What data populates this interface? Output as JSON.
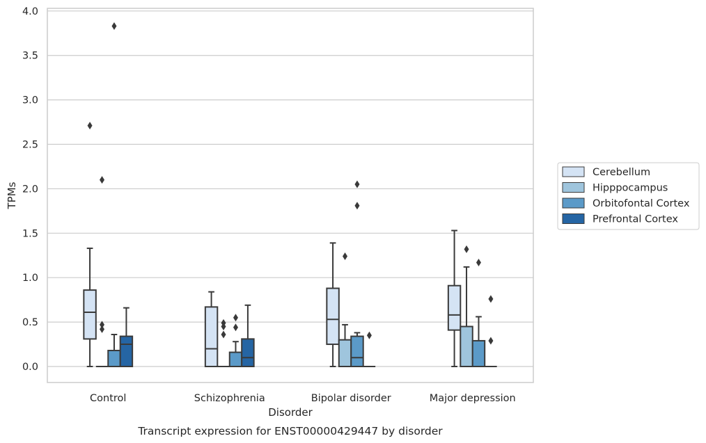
{
  "chart_data": {
    "type": "box",
    "title": "",
    "caption": "Transcript expression for ENST00000429447 by disorder",
    "xlabel": "Disorder",
    "ylabel": "TPMs",
    "ylim": [
      -0.18,
      4.03
    ],
    "yticks": [
      0.0,
      0.5,
      1.0,
      1.5,
      2.0,
      2.5,
      3.0,
      3.5,
      4.0
    ],
    "ytick_labels": [
      "0.0",
      "0.5",
      "1.0",
      "1.5",
      "2.0",
      "2.5",
      "3.0",
      "3.5",
      "4.0"
    ],
    "grid": "y",
    "legend_position": "right",
    "categories": [
      "Control",
      "Schizophrenia",
      "Bipolar disorder",
      "Major depression"
    ],
    "series": [
      {
        "name": "Cerebellum",
        "color": "#d4e3f4",
        "boxes": [
          {
            "whislo": 0.0,
            "q1": 0.31,
            "med": 0.61,
            "q3": 0.86,
            "whishi": 1.33,
            "fliers": [
              2.71
            ]
          },
          {
            "whislo": 0.0,
            "q1": 0.0,
            "med": 0.2,
            "q3": 0.67,
            "whishi": 0.84,
            "fliers": []
          },
          {
            "whislo": 0.0,
            "q1": 0.25,
            "med": 0.53,
            "q3": 0.88,
            "whishi": 1.39,
            "fliers": []
          },
          {
            "whislo": 0.0,
            "q1": 0.41,
            "med": 0.58,
            "q3": 0.91,
            "whishi": 1.53,
            "fliers": []
          }
        ]
      },
      {
        "name": "Hipppocampus",
        "color": "#9fc5dd",
        "boxes": [
          {
            "whislo": 0.0,
            "q1": 0.0,
            "med": 0.0,
            "q3": 0.0,
            "whishi": 0.0,
            "fliers": [
              0.42,
              0.47,
              2.1
            ]
          },
          {
            "whislo": 0.0,
            "q1": 0.0,
            "med": 0.0,
            "q3": 0.0,
            "whishi": 0.0,
            "fliers": [
              0.36,
              0.45,
              0.49
            ]
          },
          {
            "whislo": 0.0,
            "q1": 0.0,
            "med": 0.0,
            "q3": 0.3,
            "whishi": 0.47,
            "fliers": [
              1.24
            ]
          },
          {
            "whislo": 0.0,
            "q1": 0.0,
            "med": 0.0,
            "q3": 0.45,
            "whishi": 1.12,
            "fliers": [
              1.32
            ]
          }
        ]
      },
      {
        "name": "Orbitofontal Cortex",
        "color": "#5b9ac8",
        "boxes": [
          {
            "whislo": 0.0,
            "q1": 0.0,
            "med": 0.0,
            "q3": 0.18,
            "whishi": 0.36,
            "fliers": [
              3.83
            ]
          },
          {
            "whislo": 0.0,
            "q1": 0.0,
            "med": 0.0,
            "q3": 0.16,
            "whishi": 0.28,
            "fliers": [
              0.44,
              0.55
            ]
          },
          {
            "whislo": 0.0,
            "q1": 0.0,
            "med": 0.1,
            "q3": 0.34,
            "whishi": 0.38,
            "fliers": [
              1.81,
              2.05
            ]
          },
          {
            "whislo": 0.0,
            "q1": 0.0,
            "med": 0.0,
            "q3": 0.29,
            "whishi": 0.56,
            "fliers": [
              1.17
            ]
          }
        ]
      },
      {
        "name": "Prefrontal Cortex",
        "color": "#2565a4",
        "boxes": [
          {
            "whislo": 0.0,
            "q1": 0.0,
            "med": 0.25,
            "q3": 0.34,
            "whishi": 0.66,
            "fliers": []
          },
          {
            "whislo": 0.0,
            "q1": 0.0,
            "med": 0.1,
            "q3": 0.31,
            "whishi": 0.69,
            "fliers": []
          },
          {
            "whislo": 0.0,
            "q1": 0.0,
            "med": 0.0,
            "q3": 0.0,
            "whishi": 0.0,
            "fliers": [
              0.35
            ]
          },
          {
            "whislo": 0.0,
            "q1": 0.0,
            "med": 0.0,
            "q3": 0.0,
            "whishi": 0.0,
            "fliers": [
              0.29,
              0.76
            ]
          }
        ]
      }
    ]
  }
}
